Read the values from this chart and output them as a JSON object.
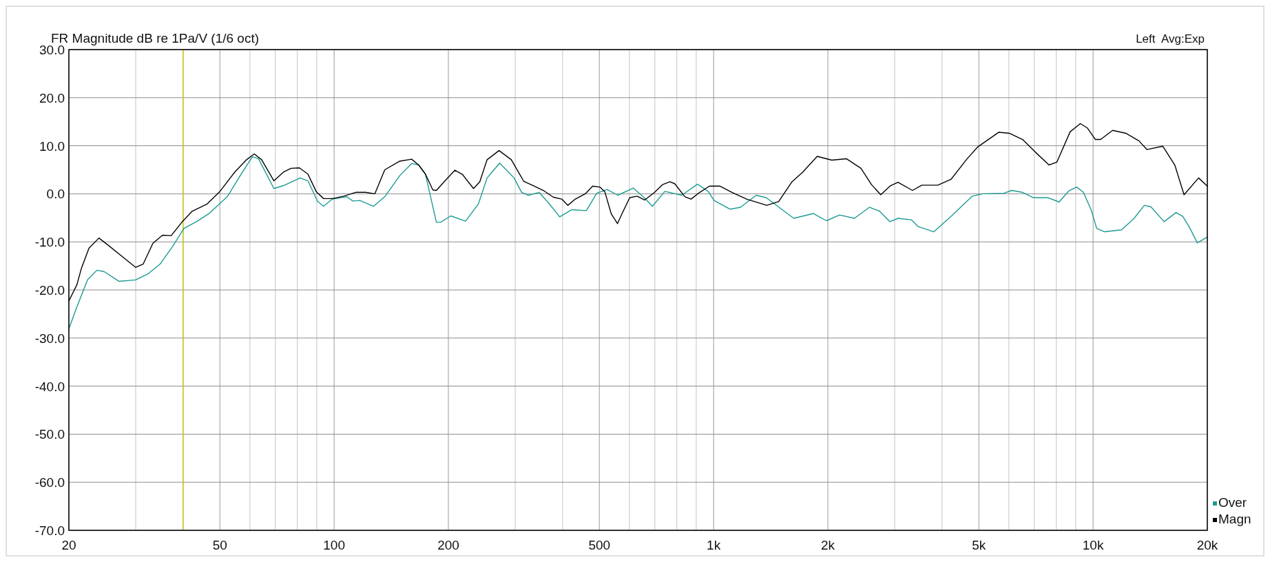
{
  "chart_data": {
    "type": "line",
    "title": "FR Magnitude dB re 1Pa/V (1/6 oct)",
    "annotations": [
      "Left  Avg:Exp"
    ],
    "log": "x",
    "grid": true,
    "legend": "bottom right",
    "xlim": [
      20,
      20000
    ],
    "ylim": [
      -70,
      30
    ],
    "xticks": [
      20,
      {
        "value": 30,
        "label": null
      },
      {
        "value": 40,
        "label": null
      },
      50,
      {
        "value": 60,
        "label": null
      },
      {
        "value": 70,
        "label": null
      },
      {
        "value": 80,
        "label": null
      },
      {
        "value": 90,
        "label": null
      },
      100,
      200,
      {
        "value": 300,
        "label": null
      },
      {
        "value": 400,
        "label": null
      },
      500,
      {
        "value": 600,
        "label": null
      },
      {
        "value": 700,
        "label": null
      },
      {
        "value": 800,
        "label": null
      },
      {
        "value": 900,
        "label": null
      },
      {
        "value": 1000,
        "label": "1k"
      },
      {
        "value": 2000,
        "label": "2k"
      },
      {
        "value": 3000,
        "label": null
      },
      {
        "value": 4000,
        "label": null
      },
      {
        "value": 5000,
        "label": "5k"
      },
      {
        "value": 6000,
        "label": null
      },
      {
        "value": 7000,
        "label": null
      },
      {
        "value": 8000,
        "label": null
      },
      {
        "value": 9000,
        "label": null
      },
      {
        "value": 10000,
        "label": "10k"
      },
      {
        "value": 20000,
        "label": "20k"
      }
    ],
    "yticks": [
      {
        "value": 30,
        "label": "30.0"
      },
      {
        "value": 20,
        "label": "20.0"
      },
      {
        "value": 10,
        "label": "10.0"
      },
      {
        "value": 0,
        "label": "0.0"
      },
      {
        "value": -10,
        "label": "-10.0"
      },
      {
        "value": -20,
        "label": "-20.0"
      },
      {
        "value": -30,
        "label": "-30.0"
      },
      {
        "value": -40,
        "label": "-40.0"
      },
      {
        "value": -50,
        "label": "-50.0"
      },
      {
        "value": -60,
        "label": "-60.0"
      },
      {
        "value": -70,
        "label": "-70.0"
      }
    ],
    "ref_lines": [
      {
        "axis": "x",
        "value": 40,
        "color": "#c8c800"
      }
    ],
    "series": [
      {
        "name": "Over",
        "color": "#1b9a92",
        "x": [
          20,
          21,
          22.4,
          23.7,
          24.8,
          27.1,
          30,
          32.4,
          34.8,
          37.5,
          40.2,
          43.6,
          47,
          52.3,
          57.1,
          60.9,
          63.2,
          69.4,
          73.5,
          81.4,
          85.3,
          90.5,
          93.8,
          98.9,
          108,
          112,
          117,
          127,
          136,
          149,
          160,
          167,
          174,
          186,
          191,
          203,
          222,
          240,
          253,
          273,
          298,
          312,
          325,
          347,
          369,
          393,
          423,
          462,
          492,
          524,
          559,
          614,
          654,
          690,
          744,
          824,
          907,
          967,
          1003,
          1104,
          1177,
          1295,
          1376,
          1626,
          1832,
          1983,
          2148,
          2350,
          2573,
          2736,
          2916,
          3060,
          3318,
          3457,
          3805,
          4222,
          4800,
          5120,
          5816,
          6100,
          6519,
          6950,
          7590,
          8140,
          8630,
          9050,
          9430,
          9900,
          10220,
          10720,
          11880,
          12790,
          13650,
          14200,
          15390,
          16540,
          17230,
          17930,
          18820,
          20000
        ],
        "values": [
          -28.1,
          -23.5,
          -17.9,
          -15.9,
          -16.2,
          -18.2,
          -17.9,
          -16.6,
          -14.6,
          -11,
          -7.2,
          -5.7,
          -4,
          -0.6,
          4.3,
          7.7,
          7.3,
          1.1,
          1.7,
          3.3,
          2.7,
          -1.6,
          -2.6,
          -1.1,
          -0.6,
          -1.5,
          -1.4,
          -2.6,
          -0.6,
          3.8,
          6.3,
          6,
          4.1,
          -5.9,
          -5.9,
          -4.6,
          -5.7,
          -2.1,
          3.3,
          6.4,
          3.3,
          0.3,
          -0.3,
          0.3,
          -2.1,
          -4.8,
          -3.3,
          -3.5,
          0.1,
          0.9,
          -0.3,
          1.2,
          -0.7,
          -2.6,
          0.5,
          -0.3,
          2,
          0.5,
          -1.4,
          -3.2,
          -2.8,
          -0.3,
          -0.8,
          -5.1,
          -4.1,
          -5.6,
          -4.4,
          -5.1,
          -2.8,
          -3.6,
          -5.8,
          -5.1,
          -5.4,
          -6.8,
          -7.9,
          -4.7,
          -0.5,
          0,
          0.1,
          0.7,
          0.3,
          -0.8,
          -0.8,
          -1.7,
          0.6,
          1.4,
          0.3,
          -3.5,
          -7.2,
          -7.9,
          -7.5,
          -5.2,
          -2.4,
          -2.7,
          -5.8,
          -3.9,
          -4.7,
          -6.9,
          -10.2,
          -9
        ]
      },
      {
        "name": "Magn",
        "color": "#000000",
        "x": [
          20,
          21,
          21.6,
          22.6,
          24,
          25.4,
          27.9,
          30,
          31.4,
          33.3,
          35.3,
          37.2,
          39.9,
          42.3,
          46.3,
          49.9,
          54.7,
          58.8,
          61.6,
          64.4,
          69.4,
          73.5,
          77,
          81,
          85.3,
          89.8,
          93.8,
          98.9,
          106,
          114,
          121,
          128,
          136,
          149,
          160,
          167,
          174,
          182,
          186,
          196,
          208,
          218,
          233,
          242,
          253,
          272,
          293,
          316,
          335,
          356,
          378,
          398,
          413,
          432,
          459,
          480,
          502,
          517,
          537,
          558,
          574,
          601,
          629,
          658,
          699,
          733,
          767,
          790,
          840,
          872,
          919,
          975,
          1038,
          1118,
          1222,
          1381,
          1484,
          1609,
          1717,
          1875,
          2048,
          2238,
          2445,
          2607,
          2757,
          2916,
          3060,
          3343,
          3537,
          3896,
          4222,
          4647,
          4958,
          5638,
          6014,
          6519,
          7060,
          7651,
          8029,
          8700,
          9252,
          9660,
          10140,
          10468,
          11260,
          12195,
          13213,
          13868,
          15271,
          16417,
          17365,
          18968,
          20000
        ],
        "values": [
          -22.3,
          -18.9,
          -15.4,
          -11.3,
          -9.2,
          -10.7,
          -13.3,
          -15.3,
          -14.6,
          -10.3,
          -8.6,
          -8.7,
          -5.7,
          -3.6,
          -2.1,
          0.4,
          4.5,
          7.1,
          8.3,
          7.1,
          2.7,
          4.5,
          5.3,
          5.4,
          4.1,
          0.4,
          -1,
          -1,
          -0.5,
          0.3,
          0.3,
          0,
          5,
          6.8,
          7.2,
          6,
          4.1,
          0.8,
          0.7,
          2.7,
          4.9,
          4,
          1.1,
          2.5,
          7.1,
          9,
          7.1,
          2.6,
          1.7,
          0.7,
          -0.7,
          -1.1,
          -2.4,
          -1.1,
          0,
          1.6,
          1.4,
          0.4,
          -4.1,
          -6.2,
          -4.1,
          -0.8,
          -0.5,
          -1.3,
          0.3,
          1.9,
          2.5,
          2.1,
          -0.6,
          -1.1,
          0.3,
          1.6,
          1.6,
          0.3,
          -1.1,
          -2.4,
          -1.6,
          2.5,
          4.5,
          7.8,
          7,
          7.3,
          5.3,
          1.9,
          -0.2,
          1.6,
          2.4,
          0.7,
          1.8,
          1.8,
          3,
          7.2,
          9.7,
          12.8,
          12.6,
          11.3,
          8.6,
          6,
          6.6,
          12.9,
          14.6,
          13.7,
          11.3,
          11.3,
          13.2,
          12.6,
          11,
          9.2,
          9.9,
          6,
          -0.2,
          3.3,
          1.6
        ]
      }
    ]
  }
}
